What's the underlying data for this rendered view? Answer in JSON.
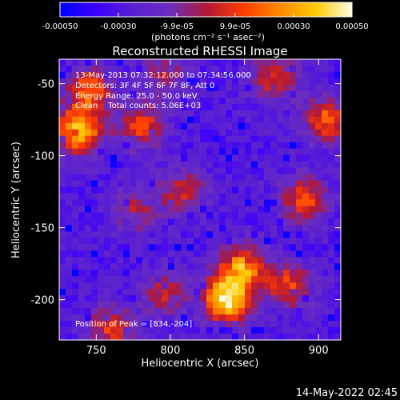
{
  "chart_data": {
    "type": "heatmap",
    "title": "Reconstructed RHESSI Image",
    "xlabel": "Heliocentric X (arcsec)",
    "ylabel": "Heliocentric Y (arcsec)",
    "x_ticks": [
      "750",
      "800",
      "850",
      "900"
    ],
    "y_ticks": [
      "-50",
      "-100",
      "-150",
      "-200"
    ],
    "xlim": [
      725,
      915
    ],
    "ylim": [
      -228,
      -33
    ],
    "colorbar": {
      "ticks": [
        "-0.00050",
        "-0.00030",
        "-9.9e-05",
        "9.9e-05",
        "0.00030",
        "0.00050"
      ],
      "units": "(photons cm⁻² s⁻¹ asec⁻²)",
      "range": [
        -0.0005,
        0.0005
      ],
      "colors": [
        "#0000ff",
        "#3c00ff",
        "#5a1fd0",
        "#6a2ec0",
        "#b01838",
        "#ff3a00",
        "#ff8800",
        "#ffc800",
        "#ffffe6"
      ]
    },
    "annotations": [
      "13-May-2013 07:32:12.000 to 07:34:56.000",
      "Detectors: 3F 4F 5F 6F 7F 8F, Att 0",
      "Energy Range: 25.0 - 50.0 keV",
      "Clean    Total counts: 5.06E+03"
    ],
    "peak_label": "Position of Peak = [834,-204]",
    "peak": [
      834,
      -204
    ],
    "sources": [
      {
        "x": 838,
        "y": -200,
        "amp": 1.0
      },
      {
        "x": 848,
        "y": -178,
        "amp": 0.78
      },
      {
        "x": 738,
        "y": -83,
        "amp": 0.85
      },
      {
        "x": 745,
        "y": -55,
        "amp": 0.65
      },
      {
        "x": 780,
        "y": -80,
        "amp": 0.55
      },
      {
        "x": 905,
        "y": -75,
        "amp": 0.6
      },
      {
        "x": 890,
        "y": -130,
        "amp": 0.58
      },
      {
        "x": 880,
        "y": -190,
        "amp": 0.55
      },
      {
        "x": 870,
        "y": -45,
        "amp": 0.5
      },
      {
        "x": 808,
        "y": -125,
        "amp": 0.45
      },
      {
        "x": 760,
        "y": -220,
        "amp": 0.5
      },
      {
        "x": 795,
        "y": -195,
        "amp": 0.42
      },
      {
        "x": 795,
        "y": -45,
        "amp": 0.35
      },
      {
        "x": 775,
        "y": -138,
        "amp": 0.38
      }
    ]
  },
  "timestamp": "14-May-2022 02:45"
}
